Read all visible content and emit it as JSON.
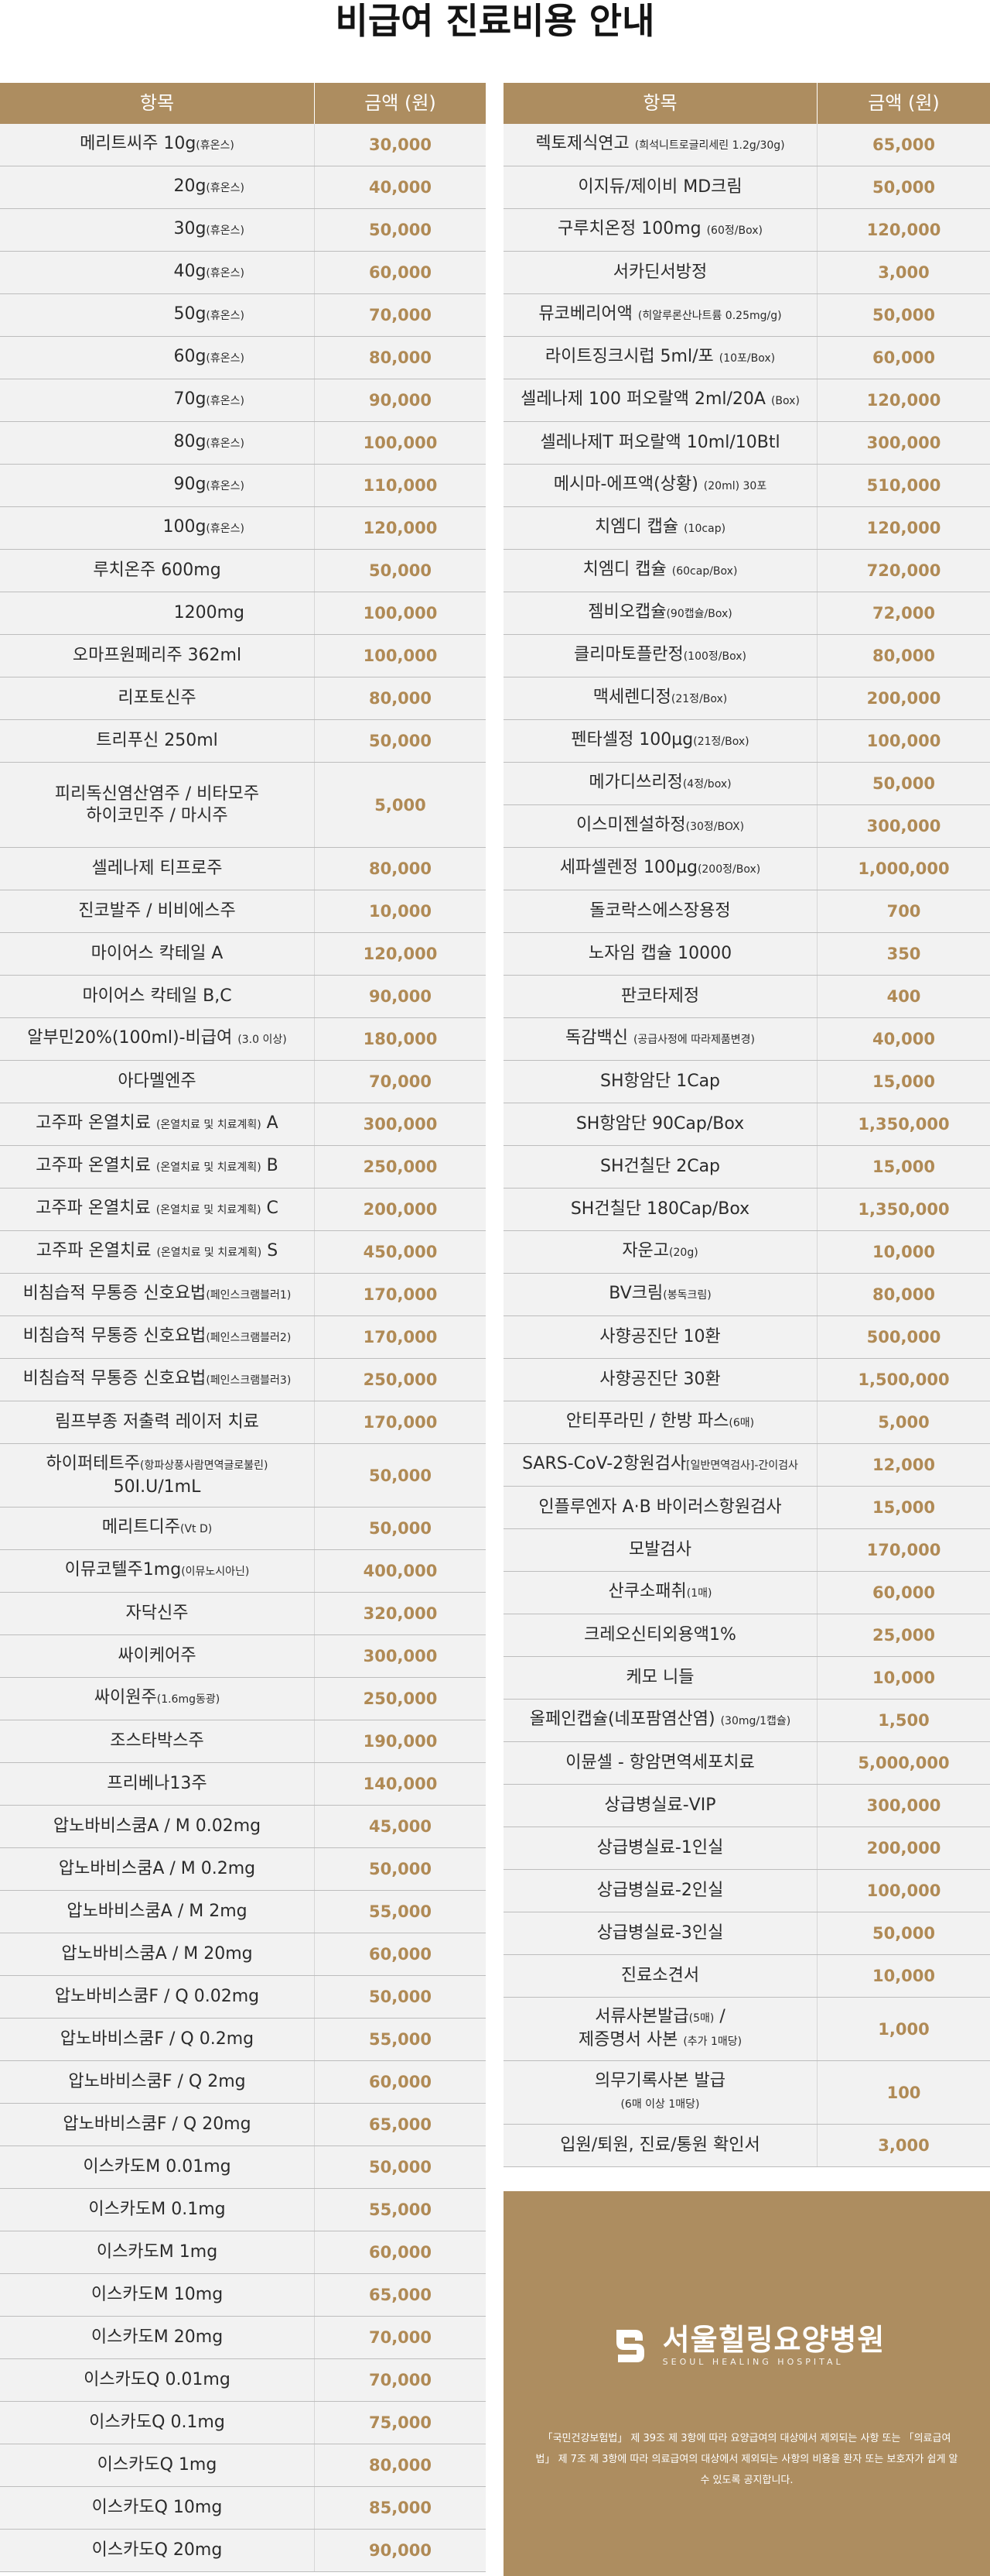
{
  "title": "비급여 진료비용 안내",
  "header": {
    "item": "항목",
    "price": "금액 (원)"
  },
  "left_rows": [
    {
      "lines": [
        {
          "t": "메리트씨주 10g",
          "n": "(휴온스)"
        }
      ],
      "price": "30,000",
      "h": 55
    },
    {
      "lines": [
        {
          "t": "20g",
          "n": "(휴온스)"
        }
      ],
      "price": "40,000",
      "h": 55,
      "align": "right"
    },
    {
      "lines": [
        {
          "t": "30g",
          "n": "(휴온스)"
        }
      ],
      "price": "50,000",
      "h": 55,
      "align": "right"
    },
    {
      "lines": [
        {
          "t": "40g",
          "n": "(휴온스)"
        }
      ],
      "price": "60,000",
      "h": 55,
      "align": "right"
    },
    {
      "lines": [
        {
          "t": "50g",
          "n": "(휴온스)"
        }
      ],
      "price": "70,000",
      "h": 55,
      "align": "right"
    },
    {
      "lines": [
        {
          "t": "60g",
          "n": "(휴온스)"
        }
      ],
      "price": "80,000",
      "h": 55,
      "align": "right"
    },
    {
      "lines": [
        {
          "t": "70g",
          "n": "(휴온스)"
        }
      ],
      "price": "90,000",
      "h": 55,
      "align": "right"
    },
    {
      "lines": [
        {
          "t": "80g",
          "n": "(휴온스)"
        }
      ],
      "price": "100,000",
      "h": 55,
      "align": "right"
    },
    {
      "lines": [
        {
          "t": "90g",
          "n": "(휴온스)"
        }
      ],
      "price": "110,000",
      "h": 55,
      "align": "right"
    },
    {
      "lines": [
        {
          "t": "100g",
          "n": "(휴온스)"
        }
      ],
      "price": "120,000",
      "h": 55,
      "align": "right"
    },
    {
      "lines": [
        {
          "t": "루치온주  600mg"
        }
      ],
      "price": "50,000",
      "h": 55
    },
    {
      "lines": [
        {
          "t": "1200mg"
        }
      ],
      "price": "100,000",
      "h": 55,
      "align": "right"
    },
    {
      "lines": [
        {
          "t": "오마프원페리주 362ml"
        }
      ],
      "price": "100,000",
      "h": 55
    },
    {
      "lines": [
        {
          "t": "리포토신주"
        }
      ],
      "price": "80,000",
      "h": 55
    },
    {
      "lines": [
        {
          "t": "트리푸신 250ml"
        }
      ],
      "price": "50,000",
      "h": 55
    },
    {
      "lines": [
        {
          "t": "피리독신염산염주 / 비타모주"
        },
        {
          "t": "하이코민주 / 마시주"
        }
      ],
      "price": "5,000",
      "h": 110
    },
    {
      "lines": [
        {
          "t": "셀레나제 티프로주"
        }
      ],
      "price": "80,000",
      "h": 55
    },
    {
      "lines": [
        {
          "t": "진코발주 / 비비에스주"
        }
      ],
      "price": "10,000",
      "h": 55
    },
    {
      "lines": [
        {
          "t": "마이어스 칵테일 A"
        }
      ],
      "price": "120,000",
      "h": 55
    },
    {
      "lines": [
        {
          "t": "마이어스 칵테일 B,C"
        }
      ],
      "price": "90,000",
      "h": 55
    },
    {
      "lines": [
        {
          "t": "알부민20%(100ml)-비급여 ",
          "n": "(3.0 이상)"
        }
      ],
      "price": "180,000",
      "h": 55
    },
    {
      "lines": [
        {
          "t": "아다멜엔주"
        }
      ],
      "price": "70,000",
      "h": 55
    },
    {
      "lines": [
        {
          "t": "고주파 온열치료 ",
          "n": "(온열치료 및 치료계획)",
          "t2": " A"
        }
      ],
      "price": "300,000",
      "h": 55
    },
    {
      "lines": [
        {
          "t": "고주파 온열치료 ",
          "n": "(온열치료 및 치료계획)",
          "t2": " B"
        }
      ],
      "price": "250,000",
      "h": 55
    },
    {
      "lines": [
        {
          "t": "고주파 온열치료 ",
          "n": "(온열치료 및 치료계획)",
          "t2": " C"
        }
      ],
      "price": "200,000",
      "h": 55
    },
    {
      "lines": [
        {
          "t": "고주파 온열치료 ",
          "n": "(온열치료 및 치료계획)",
          "t2": " S"
        }
      ],
      "price": "450,000",
      "h": 55
    },
    {
      "lines": [
        {
          "t": "비침습적 무통증 신호요법",
          "n": "(페인스크램블러1)"
        }
      ],
      "price": "170,000",
      "h": 55
    },
    {
      "lines": [
        {
          "t": "비침습적 무통증 신호요법",
          "n": "(페인스크램블러2)"
        }
      ],
      "price": "170,000",
      "h": 55
    },
    {
      "lines": [
        {
          "t": "비침습적 무통증 신호요법",
          "n": "(페인스크램블러3)"
        }
      ],
      "price": "250,000",
      "h": 55
    },
    {
      "lines": [
        {
          "t": "림프부종 저출력 레이저 치료"
        }
      ],
      "price": "170,000",
      "h": 55
    },
    {
      "lines": [
        {
          "t": "하이퍼테트주",
          "n": "(항파상풍사람면역글로불린)"
        },
        {
          "t": "50I.U/1mL"
        }
      ],
      "price": "50,000",
      "h": 82
    },
    {
      "lines": [
        {
          "t": "메리트디주",
          "n": "(Vt D)"
        }
      ],
      "price": "50,000",
      "h": 55
    },
    {
      "lines": [
        {
          "t": "이뮤코텔주1mg",
          "n": "(이뮤노시아닌)"
        }
      ],
      "price": "400,000",
      "h": 55
    },
    {
      "lines": [
        {
          "t": "자닥신주"
        }
      ],
      "price": "320,000",
      "h": 55
    },
    {
      "lines": [
        {
          "t": "싸이케어주"
        }
      ],
      "price": "300,000",
      "h": 55
    },
    {
      "lines": [
        {
          "t": "싸이원주",
          "n": "(1.6mg동광)"
        }
      ],
      "price": "250,000",
      "h": 55
    },
    {
      "lines": [
        {
          "t": "조스타박스주"
        }
      ],
      "price": "190,000",
      "h": 55
    },
    {
      "lines": [
        {
          "t": "프리베나13주"
        }
      ],
      "price": "140,000",
      "h": 55
    },
    {
      "lines": [
        {
          "t": "압노바비스쿰A / M 0.02mg"
        }
      ],
      "price": "45,000",
      "h": 55
    },
    {
      "lines": [
        {
          "t": "압노바비스쿰A / M 0.2mg"
        }
      ],
      "price": "50,000",
      "h": 55
    },
    {
      "lines": [
        {
          "t": "압노바비스쿰A / M 2mg"
        }
      ],
      "price": "55,000",
      "h": 55
    },
    {
      "lines": [
        {
          "t": "압노바비스쿰A / M 20mg"
        }
      ],
      "price": "60,000",
      "h": 55
    },
    {
      "lines": [
        {
          "t": "압노바비스쿰F / Q 0.02mg"
        }
      ],
      "price": "50,000",
      "h": 55
    },
    {
      "lines": [
        {
          "t": "압노바비스쿰F / Q 0.2mg"
        }
      ],
      "price": "55,000",
      "h": 55
    },
    {
      "lines": [
        {
          "t": "압노바비스쿰F / Q 2mg"
        }
      ],
      "price": "60,000",
      "h": 55
    },
    {
      "lines": [
        {
          "t": "압노바비스쿰F / Q 20mg"
        }
      ],
      "price": "65,000",
      "h": 55
    },
    {
      "lines": [
        {
          "t": "이스카도M 0.01mg"
        }
      ],
      "price": "50,000",
      "h": 55
    },
    {
      "lines": [
        {
          "t": "이스카도M 0.1mg"
        }
      ],
      "price": "55,000",
      "h": 55
    },
    {
      "lines": [
        {
          "t": "이스카도M 1mg"
        }
      ],
      "price": "60,000",
      "h": 55
    },
    {
      "lines": [
        {
          "t": "이스카도M 10mg"
        }
      ],
      "price": "65,000",
      "h": 55
    },
    {
      "lines": [
        {
          "t": "이스카도M 20mg"
        }
      ],
      "price": "70,000",
      "h": 55
    },
    {
      "lines": [
        {
          "t": "이스카도Q 0.01mg"
        }
      ],
      "price": "70,000",
      "h": 55
    },
    {
      "lines": [
        {
          "t": "이스카도Q 0.1mg"
        }
      ],
      "price": "75,000",
      "h": 55
    },
    {
      "lines": [
        {
          "t": "이스카도Q 1mg"
        }
      ],
      "price": "80,000",
      "h": 55
    },
    {
      "lines": [
        {
          "t": "이스카도Q 10mg"
        }
      ],
      "price": "85,000",
      "h": 55
    },
    {
      "lines": [
        {
          "t": "이스카도Q 20mg"
        }
      ],
      "price": "90,000",
      "h": 55
    }
  ],
  "right_rows": [
    {
      "lines": [
        {
          "t": "렉토제식연고 ",
          "n": "(희석니트로글리세린 1.2g/30g)"
        }
      ],
      "price": "65,000",
      "h": 55
    },
    {
      "lines": [
        {
          "t": "이지듀/제이비 MD크림"
        }
      ],
      "price": "50,000",
      "h": 55
    },
    {
      "lines": [
        {
          "t": "구루치온정 100mg ",
          "n": "(60정/Box)"
        }
      ],
      "price": "120,000",
      "h": 55
    },
    {
      "lines": [
        {
          "t": "서카딘서방정"
        }
      ],
      "price": "3,000",
      "h": 55
    },
    {
      "lines": [
        {
          "t": "뮤코베리어액 ",
          "n": "(히알루론산나트륨 0.25mg/g)"
        }
      ],
      "price": "50,000",
      "h": 55
    },
    {
      "lines": [
        {
          "t": "라이트징크시럽 5ml/포 ",
          "n": "(10포/Box)"
        }
      ],
      "price": "60,000",
      "h": 55
    },
    {
      "lines": [
        {
          "t": "셀레나제 100 퍼오랄액 2ml/20A ",
          "n": "(Box)"
        }
      ],
      "price": "120,000",
      "h": 55
    },
    {
      "lines": [
        {
          "t": "셀레나제T 퍼오랄액 10ml/10Btl"
        }
      ],
      "price": "300,000",
      "h": 55
    },
    {
      "lines": [
        {
          "t": "메시마-에프액(상황) ",
          "n": "(20ml) 30포"
        }
      ],
      "price": "510,000",
      "h": 55
    },
    {
      "lines": [
        {
          "t": "치엠디 캡슐 ",
          "n": "(10cap)"
        }
      ],
      "price": "120,000",
      "h": 55
    },
    {
      "lines": [
        {
          "t": "치엠디 캡슐 ",
          "n": "(60cap/Box)"
        }
      ],
      "price": "720,000",
      "h": 55
    },
    {
      "lines": [
        {
          "t": "젬비오캡슐",
          "n": "(90캡슐/Box)"
        }
      ],
      "price": "72,000",
      "h": 55
    },
    {
      "lines": [
        {
          "t": "클리마토플란정",
          "n": "(100정/Box)"
        }
      ],
      "price": "80,000",
      "h": 55
    },
    {
      "lines": [
        {
          "t": "맥세렌디정",
          "n": "(21정/Box)"
        }
      ],
      "price": "200,000",
      "h": 55
    },
    {
      "lines": [
        {
          "t": "펜타셀정 100µg",
          "n": "(21정/Box)"
        }
      ],
      "price": "100,000",
      "h": 55
    },
    {
      "lines": [
        {
          "t": "메가디쓰리정",
          "n": "(4정/box)"
        }
      ],
      "price": "50,000",
      "h": 55
    },
    {
      "lines": [
        {
          "t": "이스미젠설하정",
          "n": "(30정/BOX)"
        }
      ],
      "price": "300,000",
      "h": 55
    },
    {
      "lines": [
        {
          "t": "세파셀렌정 100µg",
          "n": "(200정/Box)"
        }
      ],
      "price": "1,000,000",
      "h": 55
    },
    {
      "lines": [
        {
          "t": "돌코락스에스장용정"
        }
      ],
      "price": "700",
      "h": 55
    },
    {
      "lines": [
        {
          "t": "노자임 캡슐 10000"
        }
      ],
      "price": "350",
      "h": 55
    },
    {
      "lines": [
        {
          "t": "판코타제정"
        }
      ],
      "price": "400",
      "h": 55
    },
    {
      "lines": [
        {
          "t": "독감백신 ",
          "n": "(공급사정에 따라제품변경)"
        }
      ],
      "price": "40,000",
      "h": 55
    },
    {
      "lines": [
        {
          "t": "SH항암단 1Cap"
        }
      ],
      "price": "15,000",
      "h": 55
    },
    {
      "lines": [
        {
          "t": "SH항암단 90Cap/Box"
        }
      ],
      "price": "1,350,000",
      "h": 55
    },
    {
      "lines": [
        {
          "t": "SH건칠단 2Cap"
        }
      ],
      "price": "15,000",
      "h": 55
    },
    {
      "lines": [
        {
          "t": "SH건칠단 180Cap/Box"
        }
      ],
      "price": "1,350,000",
      "h": 55
    },
    {
      "lines": [
        {
          "t": "자운고",
          "n": "(20g)"
        }
      ],
      "price": "10,000",
      "h": 55
    },
    {
      "lines": [
        {
          "t": "BV크림",
          "n": "(봉독크림)"
        }
      ],
      "price": "80,000",
      "h": 55
    },
    {
      "lines": [
        {
          "t": "사향공진단 10환"
        }
      ],
      "price": "500,000",
      "h": 55
    },
    {
      "lines": [
        {
          "t": "사향공진단 30환"
        }
      ],
      "price": "1,500,000",
      "h": 55
    },
    {
      "lines": [
        {
          "t": "안티푸라민 / 한방 파스",
          "n": "(6매)"
        }
      ],
      "price": "5,000",
      "h": 55
    },
    {
      "lines": [
        {
          "t": "SARS-CoV-2항원검사",
          "n": "[일반면역검사]-간이검사"
        }
      ],
      "price": "12,000",
      "h": 55
    },
    {
      "lines": [
        {
          "t": "인플루엔자 A·B 바이러스항원검사"
        }
      ],
      "price": "15,000",
      "h": 55
    },
    {
      "lines": [
        {
          "t": "모발검사"
        }
      ],
      "price": "170,000",
      "h": 55
    },
    {
      "lines": [
        {
          "t": "산쿠소패취",
          "n": "(1매)"
        }
      ],
      "price": "60,000",
      "h": 55
    },
    {
      "lines": [
        {
          "t": "크레오신티외용액1%"
        }
      ],
      "price": "25,000",
      "h": 55
    },
    {
      "lines": [
        {
          "t": "케모 니들"
        }
      ],
      "price": "10,000",
      "h": 55
    },
    {
      "lines": [
        {
          "t": "올페인캡슐(네포팜염산염) ",
          "n": "(30mg/1캡슐)"
        }
      ],
      "price": "1,500",
      "h": 55
    },
    {
      "lines": [
        {
          "t": "이뮨셀 - 항암면역세포치료"
        }
      ],
      "price": "5,000,000",
      "h": 55
    },
    {
      "lines": [
        {
          "t": "상급병실료-VIP"
        }
      ],
      "price": "300,000",
      "h": 55
    },
    {
      "lines": [
        {
          "t": "상급병실료-1인실"
        }
      ],
      "price": "200,000",
      "h": 55
    },
    {
      "lines": [
        {
          "t": "상급병실료-2인실"
        }
      ],
      "price": "100,000",
      "h": 55
    },
    {
      "lines": [
        {
          "t": "상급병실료-3인실"
        }
      ],
      "price": "50,000",
      "h": 55
    },
    {
      "lines": [
        {
          "t": "진료소견서"
        }
      ],
      "price": "10,000",
      "h": 55
    },
    {
      "lines": [
        {
          "t": "서류사본발급",
          "n": "(5매)",
          "t2": " /"
        },
        {
          "t": "제증명서 사본 ",
          "n": "(추가 1매당)"
        }
      ],
      "price": "1,000",
      "h": 82
    },
    {
      "lines": [
        {
          "t": "의무기록사본 발급"
        },
        {
          "n": "(6매 이상 1매당)"
        }
      ],
      "price": "100",
      "h": 82
    },
    {
      "lines": [
        {
          "t": "입원/퇴원, 진료/통원 확인서"
        }
      ],
      "price": "3,000",
      "h": 55
    }
  ],
  "footer": {
    "logo_name": "서울힐링요양병원",
    "logo_sub": "SEOUL HEALING HOSPITAL",
    "logo_icon": "hospital-logo-icon",
    "notice": "「국민건강보험법」 제 39조 제 3항에 따라 요양급여의 대상에서 제외되는 사항 또는 「의료급여법」 제 7조 제 3항에 따라 의료급여의 대상에서 제외되는 사항의 비용을 환자 또는 보호자가 쉽게 알 수 있도록 공지합니다."
  },
  "colors": {
    "accent": "#ad8d60",
    "price": "#b08a55",
    "row_bg": "#f2f2f2"
  }
}
